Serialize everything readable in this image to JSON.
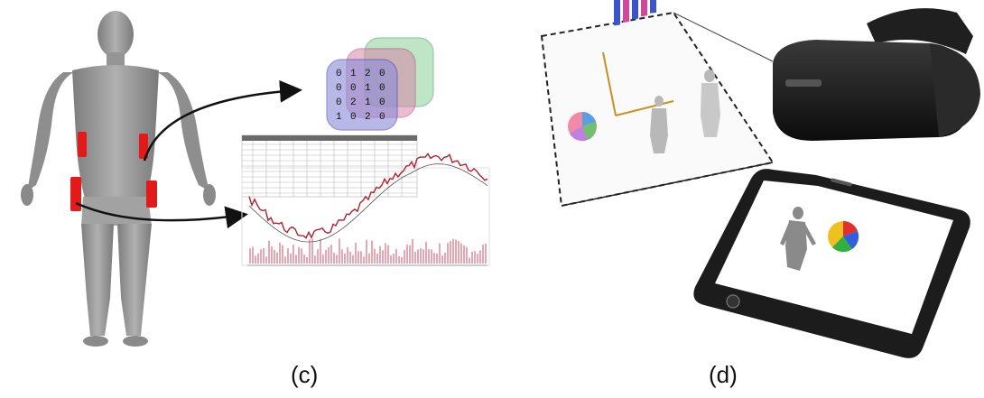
{
  "panels": [
    {
      "id": "c",
      "caption": "(c)"
    },
    {
      "id": "d",
      "caption": "(d)"
    }
  ],
  "matrix": {
    "rows": [
      [
        "0",
        "1",
        "2",
        "0"
      ],
      [
        "0",
        "0",
        "1",
        "0"
      ],
      [
        "0",
        "2",
        "1",
        "0"
      ],
      [
        "1",
        "0",
        "2",
        "0"
      ]
    ]
  },
  "colors": {
    "body": "#9a9a9a",
    "sensor": "#e21a1a",
    "arrow": "#111111",
    "matrix_front": "#8a8ad8",
    "matrix_middle": "#d888a8",
    "matrix_back": "#88d098",
    "headset": "#141414",
    "phone": "#1c1c1c"
  },
  "icons": [
    "human-body-icon",
    "sensor-patch-icon",
    "tensor-matrix-icon",
    "data-table-icon",
    "time-series-chart-icon",
    "projection-screen-icon",
    "bar-chart-icon",
    "pie-chart-icon",
    "vr-headset-icon",
    "smartphone-icon"
  ]
}
